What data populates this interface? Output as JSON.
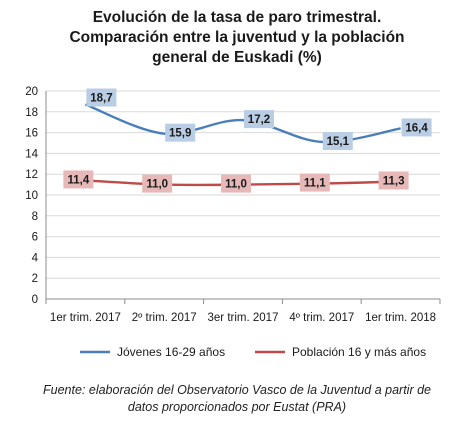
{
  "title_lines": [
    "Evolución de la tasa de paro trimestral.",
    "Comparación entre la juventud y la población",
    "general de Euskadi (%)"
  ],
  "source_lines": [
    "Fuente: elaboración del Observatorio Vasco de la Juventud a partir de",
    "datos proporcionados por Eustat (PRA)"
  ],
  "chart_data": {
    "type": "line",
    "title": "Evolución de la tasa de paro trimestral. Comparación entre la juventud y la población general de Euskadi (%)",
    "categories": [
      "1er trim. 2017",
      "2º trim. 2017",
      "3er trim. 2017",
      "4º trim. 2017",
      "1er trim. 2018"
    ],
    "series": [
      {
        "name": "Jóvenes 16-29 años",
        "values": [
          18.7,
          15.9,
          17.2,
          15.1,
          16.4
        ],
        "labels": [
          "18,7",
          "15,9",
          "17,2",
          "15,1",
          "16,4"
        ],
        "color": "#4a7ebb",
        "label_bg": "#b9cde5"
      },
      {
        "name": "Población 16 y más años",
        "values": [
          11.4,
          11.0,
          11.0,
          11.1,
          11.3
        ],
        "labels": [
          "11,4",
          "11,0",
          "11,0",
          "11,1",
          "11,3"
        ],
        "color": "#be4b48",
        "label_bg": "#e6b9b8"
      }
    ],
    "yticks": [
      "0",
      "2",
      "4",
      "6",
      "8",
      "10",
      "12",
      "14",
      "16",
      "18",
      "20"
    ],
    "ylim": [
      0,
      20
    ],
    "grid": true,
    "legend": "bottom",
    "smooth": true
  }
}
